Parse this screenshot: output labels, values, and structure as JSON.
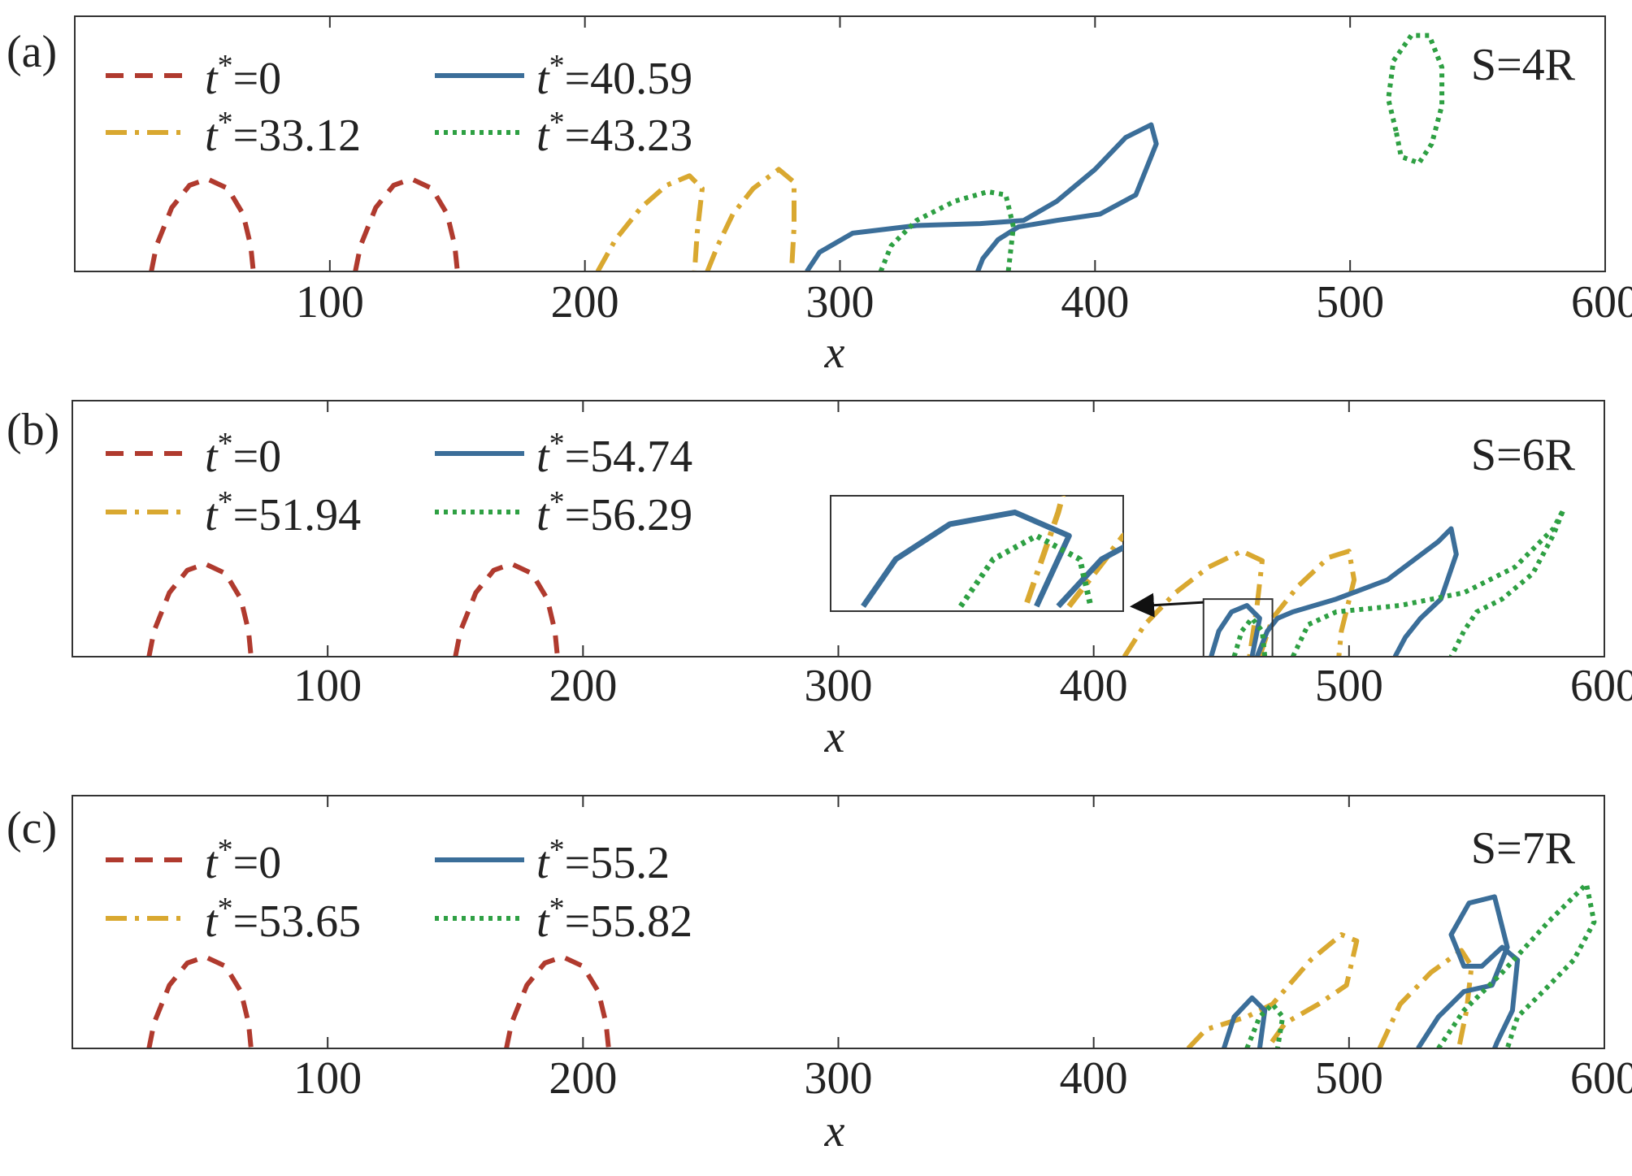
{
  "figure": {
    "colors": {
      "t0": "#b03a2e",
      "t1": "#d9a830",
      "t2": "#3b6e99",
      "t3": "#2ea043",
      "axis": "#333333"
    }
  },
  "chart_data": [
    {
      "type": "line",
      "panel_label": "(a)",
      "annotation_text": "S=4R",
      "xlabel": "x",
      "ylabel": "",
      "xlim": [
        0,
        600
      ],
      "xticks": [
        100,
        200,
        300,
        400,
        500,
        600
      ],
      "xtick_labels": [
        "100",
        "200",
        "300",
        "400",
        "500",
        "600"
      ],
      "legend": [
        "t*=0",
        "t*=33.12",
        "t*=40.59",
        "t*=43.23"
      ],
      "legend_placement": "top-left, two columns",
      "series": [
        {
          "name": "t*=0",
          "style": "dashed",
          "color_key": "t0",
          "curves": [
            [
              [
                30,
                0
              ],
              [
                32,
                4
              ],
              [
                38,
                10
              ],
              [
                45,
                13.5
              ],
              [
                52,
                14.5
              ],
              [
                60,
                13
              ],
              [
                66,
                9
              ],
              [
                69,
                4
              ],
              [
                70,
                0
              ]
            ],
            [
              [
                110,
                0
              ],
              [
                112,
                4
              ],
              [
                118,
                10
              ],
              [
                125,
                13.5
              ],
              [
                132,
                14.5
              ],
              [
                140,
                13
              ],
              [
                146,
                9
              ],
              [
                149,
                4
              ],
              [
                150,
                0
              ]
            ]
          ]
        },
        {
          "name": "t*=33.12",
          "style": "dash-dot",
          "color_key": "t1",
          "curves": [
            [
              [
                205,
                0
              ],
              [
                212,
                5
              ],
              [
                222,
                10
              ],
              [
                232,
                13.5
              ],
              [
                241,
                15
              ],
              [
                246,
                13
              ],
              [
                244,
                6
              ],
              [
                243,
                0
              ]
            ],
            [
              [
                248,
                0
              ],
              [
                252,
                4
              ],
              [
                258,
                9
              ],
              [
                266,
                13
              ],
              [
                276,
                16
              ],
              [
                282,
                14
              ],
              [
                282,
                7
              ],
              [
                281,
                0
              ]
            ]
          ]
        },
        {
          "name": "t*=40.59",
          "style": "solid",
          "color_key": "t2",
          "curves": [
            [
              [
                287,
                0
              ],
              [
                292,
                3
              ],
              [
                305,
                6
              ],
              [
                330,
                7.2
              ],
              [
                355,
                7.5
              ],
              [
                372,
                8
              ],
              [
                385,
                11
              ],
              [
                400,
                16
              ],
              [
                412,
                21
              ],
              [
                422,
                23
              ],
              [
                424,
                20
              ],
              [
                416,
                12
              ],
              [
                402,
                9
              ],
              [
                385,
                8
              ],
              [
                370,
                7
              ],
              [
                362,
                5
              ],
              [
                356,
                2
              ],
              [
                354,
                0
              ]
            ]
          ]
        },
        {
          "name": "t*=43.23",
          "style": "dotted",
          "color_key": "t3",
          "curves": [
            [
              [
                316,
                0
              ],
              [
                320,
                4
              ],
              [
                330,
                8
              ],
              [
                345,
                11
              ],
              [
                358,
                12.5
              ],
              [
                365,
                12
              ],
              [
                368,
                7
              ],
              [
                366,
                0
              ]
            ],
            [
              [
                518,
                22
              ],
              [
                515,
                27
              ],
              [
                517,
                33
              ],
              [
                524,
                37
              ],
              [
                531,
                37
              ],
              [
                536,
                32
              ],
              [
                536,
                26
              ],
              [
                532,
                20
              ],
              [
                527,
                17
              ],
              [
                520,
                18
              ],
              [
                518,
                22
              ]
            ]
          ]
        }
      ]
    },
    {
      "type": "line",
      "panel_label": "(b)",
      "annotation_text": "S=6R",
      "xlabel": "x",
      "ylabel": "",
      "xlim": [
        0,
        600
      ],
      "xticks": [
        100,
        200,
        300,
        400,
        500,
        600
      ],
      "xtick_labels": [
        "100",
        "200",
        "300",
        "400",
        "500",
        "600"
      ],
      "legend": [
        "t*=0",
        "t*=51.94",
        "t*=54.74",
        "t*=56.29"
      ],
      "legend_placement": "top-left, two columns",
      "series": [
        {
          "name": "t*=0",
          "style": "dashed",
          "color_key": "t0",
          "curves": [
            [
              [
                30,
                0
              ],
              [
                32,
                4
              ],
              [
                38,
                10
              ],
              [
                45,
                13.5
              ],
              [
                52,
                14.5
              ],
              [
                60,
                13
              ],
              [
                66,
                9
              ],
              [
                69,
                4
              ],
              [
                70,
                0
              ]
            ],
            [
              [
                150,
                0
              ],
              [
                152,
                4
              ],
              [
                158,
                10
              ],
              [
                165,
                13.5
              ],
              [
                172,
                14.5
              ],
              [
                180,
                13
              ],
              [
                186,
                9
              ],
              [
                189,
                4
              ],
              [
                190,
                0
              ]
            ]
          ]
        },
        {
          "name": "t*=51.94",
          "style": "dash-dot",
          "color_key": "t1",
          "curves": [
            [
              [
                412,
                0
              ],
              [
                420,
                5
              ],
              [
                432,
                10
              ],
              [
                445,
                14
              ],
              [
                458,
                16.5
              ],
              [
                466,
                15
              ],
              [
                464,
                8
              ],
              [
                461,
                0
              ]
            ],
            [
              [
                465,
                0
              ],
              [
                470,
                6
              ],
              [
                480,
                11
              ],
              [
                492,
                15.5
              ],
              [
                500,
                16.5
              ],
              [
                502,
                12
              ],
              [
                497,
                4
              ],
              [
                496,
                0
              ]
            ]
          ]
        },
        {
          "name": "t*=54.74",
          "style": "solid",
          "color_key": "t2",
          "curves": [
            [
              [
                446,
                0
              ],
              [
                449,
                4
              ],
              [
                454,
                7
              ],
              [
                460,
                8
              ],
              [
                465,
                6
              ],
              [
                462,
                0
              ]
            ],
            [
              [
                464,
                0
              ],
              [
                468,
                4
              ],
              [
                472,
                6
              ],
              [
                478,
                7
              ],
              [
                495,
                9
              ],
              [
                515,
                12
              ],
              [
                535,
                18
              ],
              [
                540,
                20
              ],
              [
                542,
                16
              ],
              [
                536,
                9
              ],
              [
                528,
                6
              ],
              [
                522,
                3
              ],
              [
                518,
                0
              ]
            ]
          ]
        },
        {
          "name": "t*=56.29",
          "style": "dotted",
          "color_key": "t3",
          "curves": [
            [
              [
                455,
                0
              ],
              [
                458,
                4
              ],
              [
                462,
                6
              ],
              [
                466,
                4
              ],
              [
                467,
                0
              ]
            ],
            [
              [
                478,
                0
              ],
              [
                484,
                5
              ],
              [
                495,
                7
              ],
              [
                520,
                8
              ],
              [
                545,
                10
              ],
              [
                565,
                14
              ],
              [
                580,
                20
              ],
              [
                584,
                23
              ],
              [
                580,
                19
              ],
              [
                572,
                13
              ],
              [
                560,
                9
              ],
              [
                550,
                7
              ],
              [
                545,
                4
              ],
              [
                540,
                0
              ]
            ]
          ]
        }
      ],
      "inset": {
        "label": "zoom of region x 443-470",
        "source_xlim": [
          443,
          470
        ]
      }
    },
    {
      "type": "line",
      "panel_label": "(c)",
      "annotation_text": "S=7R",
      "xlabel": "x",
      "ylabel": "",
      "xlim": [
        0,
        600
      ],
      "xticks": [
        100,
        200,
        300,
        400,
        500,
        600
      ],
      "xtick_labels": [
        "100",
        "200",
        "300",
        "400",
        "500",
        "600"
      ],
      "legend": [
        "t*=0",
        "t*=53.65",
        "t*=55.2",
        "t*=55.82"
      ],
      "legend_placement": "top-left, two columns",
      "series": [
        {
          "name": "t*=0",
          "style": "dashed",
          "color_key": "t0",
          "curves": [
            [
              [
                30,
                0
              ],
              [
                32,
                4
              ],
              [
                38,
                10
              ],
              [
                45,
                13.5
              ],
              [
                52,
                14.5
              ],
              [
                60,
                13
              ],
              [
                66,
                9
              ],
              [
                69,
                4
              ],
              [
                70,
                0
              ]
            ],
            [
              [
                170,
                0
              ],
              [
                172,
                4
              ],
              [
                178,
                10
              ],
              [
                185,
                13.5
              ],
              [
                192,
                14.5
              ],
              [
                200,
                13
              ],
              [
                206,
                9
              ],
              [
                209,
                4
              ],
              [
                210,
                0
              ]
            ]
          ]
        },
        {
          "name": "t*=53.65",
          "style": "dash-dot",
          "color_key": "t1",
          "curves": [
            [
              [
                437,
                0
              ],
              [
                444,
                3
              ],
              [
                460,
                5
              ],
              [
                470,
                7
              ],
              [
                485,
                14
              ],
              [
                497,
                18
              ],
              [
                503,
                17
              ],
              [
                499,
                10
              ],
              [
                488,
                7
              ],
              [
                475,
                4
              ],
              [
                468,
                0
              ]
            ],
            [
              [
                512,
                0
              ],
              [
                520,
                7
              ],
              [
                532,
                12
              ],
              [
                544,
                15.5
              ],
              [
                548,
                13
              ],
              [
                546,
                6
              ],
              [
                543,
                0
              ]
            ]
          ]
        },
        {
          "name": "t*=55.2",
          "style": "solid",
          "color_key": "t2",
          "curves": [
            [
              [
                451,
                0
              ],
              [
                455,
                5
              ],
              [
                462,
                8
              ],
              [
                467,
                6
              ],
              [
                465,
                0
              ]
            ],
            [
              [
                527,
                0
              ],
              [
                535,
                5
              ],
              [
                545,
                9
              ],
              [
                556,
                10
              ],
              [
                562,
                16
              ],
              [
                557,
                24
              ],
              [
                547,
                23
              ],
              [
                540,
                18
              ],
              [
                545,
                13
              ],
              [
                552,
                13
              ],
              [
                560,
                16
              ],
              [
                566,
                14
              ],
              [
                564,
                6
              ],
              [
                558,
                1
              ],
              [
                557,
                0
              ]
            ]
          ]
        },
        {
          "name": "t*=55.82",
          "style": "dotted",
          "color_key": "t3",
          "curves": [
            [
              [
                460,
                0
              ],
              [
                465,
                5
              ],
              [
                470,
                7
              ],
              [
                474,
                5
              ],
              [
                472,
                0
              ]
            ],
            [
              [
                535,
                0
              ],
              [
                545,
                6
              ],
              [
                560,
                12
              ],
              [
                578,
                20
              ],
              [
                593,
                26
              ],
              [
                596,
                20
              ],
              [
                588,
                14
              ],
              [
                576,
                9
              ],
              [
                566,
                5
              ],
              [
                562,
                0
              ]
            ]
          ]
        }
      ]
    }
  ]
}
